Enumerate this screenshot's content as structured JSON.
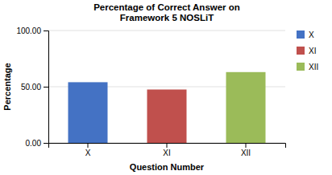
{
  "chart_data": {
    "type": "bar",
    "title": "Percentage of Correct Answer on\nFramework 5 NOSLiT",
    "xlabel": "Question Number",
    "ylabel": "Percentage",
    "categories": [
      "X",
      "XI",
      "XII"
    ],
    "values": [
      54.0,
      47.5,
      63.0
    ],
    "colors": [
      "#4472C4",
      "#C0504D",
      "#9BBB59"
    ],
    "ylim": [
      0,
      100
    ],
    "yticks": [
      {
        "value": 0,
        "label": "0.00"
      },
      {
        "value": 50,
        "label": "50.00"
      },
      {
        "value": 100,
        "label": "100.00"
      }
    ],
    "grid": true,
    "legend": "right"
  }
}
